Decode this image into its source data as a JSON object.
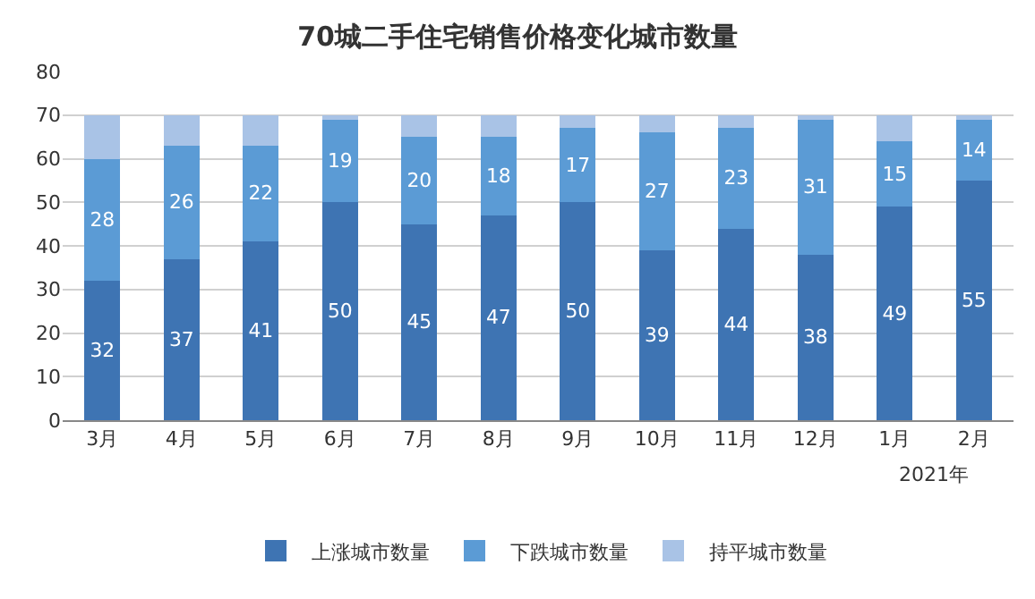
{
  "chart_data": {
    "type": "bar",
    "title": "70城二手住宅销售价格变化城市数量",
    "categories": [
      "3月",
      "4月",
      "5月",
      "6月",
      "7月",
      "8月",
      "9月",
      "10月",
      "11月",
      "12月",
      "1月",
      "2月"
    ],
    "series": [
      {
        "name": "上涨城市数量",
        "color": "#3e74b3",
        "values": [
          32,
          37,
          41,
          50,
          45,
          47,
          50,
          39,
          44,
          38,
          49,
          55
        ],
        "value_labels": [
          "32",
          "37",
          "41",
          "50",
          "45",
          "47",
          "50",
          "39",
          "44",
          "38",
          "49",
          "55"
        ]
      },
      {
        "name": "下跌城市数量",
        "color": "#5b9bd5",
        "values": [
          28,
          26,
          22,
          19,
          20,
          18,
          17,
          27,
          23,
          31,
          15,
          14
        ],
        "value_labels": [
          "28",
          "26",
          "22",
          "19",
          "20",
          "18",
          "17",
          "27",
          "23",
          "31",
          "15",
          "14"
        ]
      },
      {
        "name": "持平城市数量",
        "color": "#a9c3e6",
        "values": [
          10,
          7,
          7,
          1,
          5,
          5,
          3,
          4,
          3,
          1,
          6,
          1
        ]
      }
    ],
    "stacked": true,
    "ylim": [
      0,
      80
    ],
    "yticks": [
      0,
      10,
      20,
      30,
      40,
      50,
      60,
      70,
      80
    ],
    "grid": "y",
    "legend": "bottom",
    "annotations": [
      "2021年"
    ]
  }
}
